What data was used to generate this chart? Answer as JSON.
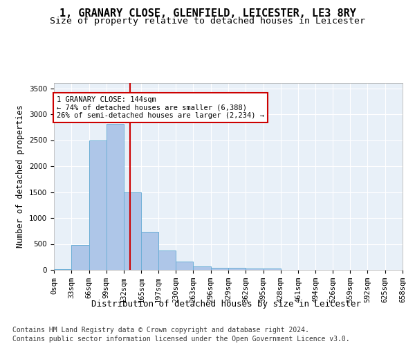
{
  "title_line1": "1, GRANARY CLOSE, GLENFIELD, LEICESTER, LE3 8RY",
  "title_line2": "Size of property relative to detached houses in Leicester",
  "xlabel": "Distribution of detached houses by size in Leicester",
  "ylabel": "Number of detached properties",
  "bin_edges": [
    0,
    33,
    66,
    99,
    132,
    165,
    197,
    230,
    263,
    296,
    329,
    362,
    395,
    428,
    461,
    494,
    526,
    559,
    592,
    625,
    658
  ],
  "bar_heights": [
    20,
    480,
    2500,
    2820,
    1500,
    740,
    380,
    155,
    70,
    45,
    45,
    25,
    25,
    0,
    0,
    0,
    0,
    0,
    0,
    0
  ],
  "bar_color": "#aec6e8",
  "bar_edgecolor": "#6baed6",
  "property_size": 144,
  "vline_color": "#cc0000",
  "annotation_text": "1 GRANARY CLOSE: 144sqm\n← 74% of detached houses are smaller (6,388)\n26% of semi-detached houses are larger (2,234) →",
  "annotation_box_color": "#cc0000",
  "annotation_bg": "#ffffff",
  "ylim": [
    0,
    3600
  ],
  "yticks": [
    0,
    500,
    1000,
    1500,
    2000,
    2500,
    3000,
    3500
  ],
  "tick_labels": [
    "0sqm",
    "33sqm",
    "66sqm",
    "99sqm",
    "132sqm",
    "165sqm",
    "197sqm",
    "230sqm",
    "263sqm",
    "296sqm",
    "329sqm",
    "362sqm",
    "395sqm",
    "428sqm",
    "461sqm",
    "494sqm",
    "526sqm",
    "559sqm",
    "592sqm",
    "625sqm",
    "658sqm"
  ],
  "background_color": "#e8f0f8",
  "grid_color": "#ffffff",
  "footer_line1": "Contains HM Land Registry data © Crown copyright and database right 2024.",
  "footer_line2": "Contains public sector information licensed under the Open Government Licence v3.0.",
  "title_fontsize": 11,
  "subtitle_fontsize": 9.5,
  "axis_label_fontsize": 9,
  "tick_fontsize": 7.5,
  "footer_fontsize": 7.0,
  "ylabel_fontsize": 8.5
}
